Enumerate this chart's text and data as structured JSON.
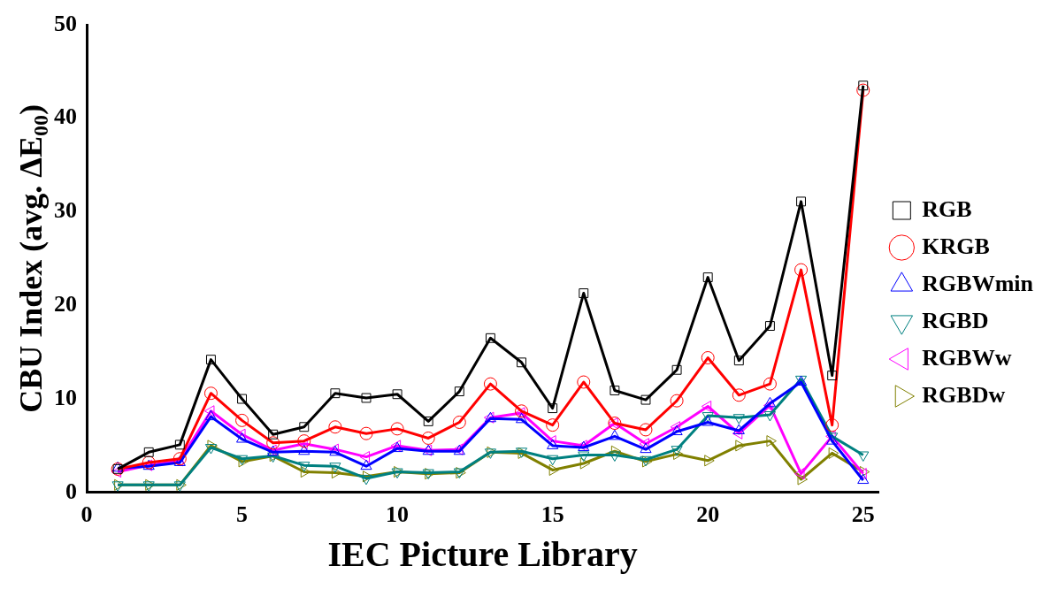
{
  "chart_data": {
    "type": "line",
    "xlabel": "IEC Picture Library",
    "ylabel": "CBU Index (avg. ΔE$_{00}$)",
    "x": [
      1,
      2,
      3,
      4,
      5,
      6,
      7,
      8,
      9,
      10,
      11,
      12,
      13,
      14,
      15,
      16,
      17,
      18,
      19,
      20,
      21,
      22,
      23,
      24,
      25
    ],
    "xlim": [
      0,
      25.5
    ],
    "xticks": [
      0,
      5,
      10,
      15,
      20,
      25
    ],
    "ylim": [
      0,
      50
    ],
    "yticks": [
      0,
      10,
      20,
      30,
      40,
      50
    ],
    "grid": false,
    "legend": "right",
    "series": [
      {
        "name": "RGB",
        "color": "#000000",
        "marker": "square",
        "values": [
          2.5,
          4.3,
          5.1,
          14.2,
          10,
          6.2,
          7,
          10.6,
          10.1,
          10.5,
          7.6,
          10.8,
          16.5,
          13.9,
          9,
          21.3,
          10.9,
          9.9,
          13.1,
          23,
          14.1,
          17.8,
          31.1,
          12.5,
          43.5
        ]
      },
      {
        "name": "KRGB",
        "color": "#ff0000",
        "marker": "circle",
        "values": [
          2.5,
          3.2,
          3.6,
          10.6,
          7.7,
          5.3,
          5.5,
          7,
          6.3,
          6.8,
          5.8,
          7.5,
          11.6,
          8.7,
          7.2,
          11.8,
          7.4,
          6.7,
          9.8,
          14.4,
          10.4,
          11.6,
          23.8,
          7.2,
          43
        ]
      },
      {
        "name": "RGBWmin",
        "color": "#0000ff",
        "marker": "triangle",
        "values": [
          2.6,
          2.8,
          3.2,
          8.1,
          5.7,
          4.3,
          4.4,
          4.3,
          2.8,
          4.7,
          4.4,
          4.4,
          7.9,
          7.8,
          5,
          4.8,
          6,
          4.6,
          6.5,
          7.5,
          6.6,
          9.5,
          11.8,
          5.5,
          1.3
        ]
      },
      {
        "name": "RGBD",
        "color": "#008080",
        "marker": "triangle",
        "values": [
          0.8,
          0.8,
          0.8,
          4.8,
          3.6,
          3.9,
          2.9,
          2.8,
          1.5,
          2.2,
          2.1,
          2.2,
          4.3,
          4.4,
          3.6,
          4,
          4,
          3.5,
          4.6,
          8.2,
          8,
          8.3,
          12.1,
          6,
          4
        ]
      },
      {
        "name": "RGBWw",
        "color": "#ff00ff",
        "marker": "triangle",
        "values": [
          2.2,
          2.9,
          3.4,
          8.7,
          6.2,
          4.5,
          5.2,
          4.6,
          3.8,
          5,
          4.5,
          4.6,
          8,
          8.5,
          5.5,
          5,
          7.4,
          5.2,
          7,
          9.2,
          6.3,
          9.3,
          2,
          6,
          2
        ]
      },
      {
        "name": "RGBDw",
        "color": "#808000",
        "marker": "triangle",
        "values": [
          0.8,
          0.8,
          0.8,
          5,
          3.3,
          3.9,
          2.2,
          2.1,
          1.7,
          2.2,
          2,
          2.1,
          4.3,
          4.2,
          2.4,
          3.1,
          4.4,
          3.3,
          4.1,
          3.4,
          5,
          5.5,
          1.4,
          4.2,
          2.2
        ]
      }
    ]
  }
}
